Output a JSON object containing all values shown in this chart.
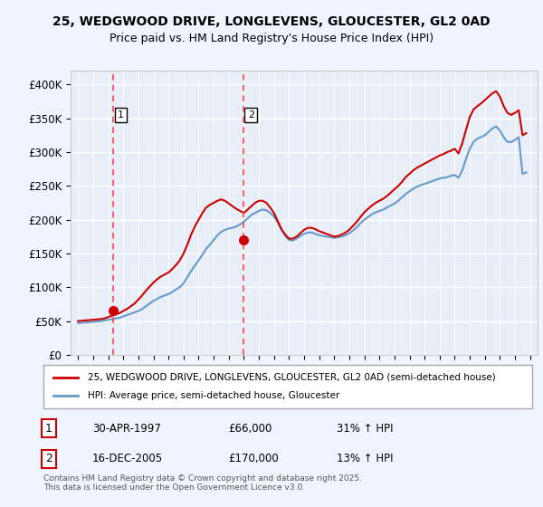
{
  "title_line1": "25, WEDGWOOD DRIVE, LONGLEVENS, GLOUCESTER, GL2 0AD",
  "title_line2": "Price paid vs. HM Land Registry's House Price Index (HPI)",
  "ylabel": "",
  "xlabel": "",
  "background_color": "#f0f4ff",
  "plot_bg_color": "#e8eef8",
  "grid_color": "#ffffff",
  "red_line_color": "#cc0000",
  "blue_line_color": "#6699cc",
  "dashed_line_color": "#ff4444",
  "ylim": [
    0,
    420000
  ],
  "yticks": [
    0,
    50000,
    100000,
    150000,
    200000,
    250000,
    300000,
    350000,
    400000
  ],
  "ytick_labels": [
    "£0",
    "£50K",
    "£100K",
    "£150K",
    "£200K",
    "£250K",
    "£300K",
    "£350K",
    "£400K"
  ],
  "sale1_date": 1997.33,
  "sale1_price": 66000,
  "sale1_label": "1",
  "sale2_date": 2005.96,
  "sale2_price": 170000,
  "sale2_label": "2",
  "legend_line1": "25, WEDGWOOD DRIVE, LONGLEVENS, GLOUCESTER, GL2 0AD (semi-detached house)",
  "legend_line2": "HPI: Average price, semi-detached house, Gloucester",
  "footnote": "Contains HM Land Registry data © Crown copyright and database right 2025.\nThis data is licensed under the Open Government Licence v3.0.",
  "table_rows": [
    {
      "num": "1",
      "date": "30-APR-1997",
      "price": "£66,000",
      "hpi": "31% ↑ HPI"
    },
    {
      "num": "2",
      "date": "16-DEC-2005",
      "price": "£170,000",
      "hpi": "13% ↑ HPI"
    }
  ],
  "hpi_data": {
    "years": [
      1995,
      1995.25,
      1995.5,
      1995.75,
      1996,
      1996.25,
      1996.5,
      1996.75,
      1997,
      1997.25,
      1997.5,
      1997.75,
      1998,
      1998.25,
      1998.5,
      1998.75,
      1999,
      1999.25,
      1999.5,
      1999.75,
      2000,
      2000.25,
      2000.5,
      2000.75,
      2001,
      2001.25,
      2001.5,
      2001.75,
      2002,
      2002.25,
      2002.5,
      2002.75,
      2003,
      2003.25,
      2003.5,
      2003.75,
      2004,
      2004.25,
      2004.5,
      2004.75,
      2005,
      2005.25,
      2005.5,
      2005.75,
      2006,
      2006.25,
      2006.5,
      2006.75,
      2007,
      2007.25,
      2007.5,
      2007.75,
      2008,
      2008.25,
      2008.5,
      2008.75,
      2009,
      2009.25,
      2009.5,
      2009.75,
      2010,
      2010.25,
      2010.5,
      2010.75,
      2011,
      2011.25,
      2011.5,
      2011.75,
      2012,
      2012.25,
      2012.5,
      2012.75,
      2013,
      2013.25,
      2013.5,
      2013.75,
      2014,
      2014.25,
      2014.5,
      2014.75,
      2015,
      2015.25,
      2015.5,
      2015.75,
      2016,
      2016.25,
      2016.5,
      2016.75,
      2017,
      2017.25,
      2017.5,
      2017.75,
      2018,
      2018.25,
      2018.5,
      2018.75,
      2019,
      2019.25,
      2019.5,
      2019.75,
      2020,
      2020.25,
      2020.5,
      2020.75,
      2021,
      2021.25,
      2021.5,
      2021.75,
      2022,
      2022.25,
      2022.5,
      2022.75,
      2023,
      2023.25,
      2023.5,
      2023.75,
      2024,
      2024.25,
      2024.5,
      2024.75
    ],
    "values": [
      47000,
      47500,
      48000,
      48500,
      49000,
      49500,
      50000,
      51000,
      52000,
      53000,
      54000,
      55000,
      57000,
      59000,
      61000,
      63000,
      65000,
      68000,
      72000,
      76000,
      80000,
      83000,
      86000,
      88000,
      90000,
      93000,
      97000,
      100000,
      106000,
      115000,
      124000,
      132000,
      140000,
      148000,
      157000,
      163000,
      170000,
      177000,
      182000,
      185000,
      187000,
      188000,
      190000,
      193000,
      197000,
      202000,
      207000,
      210000,
      213000,
      215000,
      214000,
      210000,
      205000,
      196000,
      185000,
      176000,
      170000,
      169000,
      172000,
      176000,
      179000,
      181000,
      181000,
      179000,
      177000,
      176000,
      175000,
      174000,
      173000,
      174000,
      175000,
      177000,
      180000,
      184000,
      189000,
      195000,
      200000,
      204000,
      208000,
      211000,
      213000,
      215000,
      218000,
      221000,
      224000,
      228000,
      233000,
      238000,
      242000,
      246000,
      249000,
      251000,
      253000,
      255000,
      257000,
      259000,
      261000,
      262000,
      263000,
      265000,
      266000,
      262000,
      273000,
      290000,
      305000,
      315000,
      320000,
      322000,
      325000,
      330000,
      335000,
      338000,
      332000,
      322000,
      315000,
      315000,
      318000,
      322000,
      268000,
      270000
    ]
  },
  "red_data": {
    "years": [
      1995,
      1995.25,
      1995.5,
      1995.75,
      1996,
      1996.25,
      1996.5,
      1996.75,
      1997,
      1997.25,
      1997.5,
      1997.75,
      1998,
      1998.25,
      1998.5,
      1998.75,
      1999,
      1999.25,
      1999.5,
      1999.75,
      2000,
      2000.25,
      2000.5,
      2000.75,
      2001,
      2001.25,
      2001.5,
      2001.75,
      2002,
      2002.25,
      2002.5,
      2002.75,
      2003,
      2003.25,
      2003.5,
      2003.75,
      2004,
      2004.25,
      2004.5,
      2004.75,
      2005,
      2005.25,
      2005.5,
      2005.75,
      2006,
      2006.25,
      2006.5,
      2006.75,
      2007,
      2007.25,
      2007.5,
      2007.75,
      2008,
      2008.25,
      2008.5,
      2008.75,
      2009,
      2009.25,
      2009.5,
      2009.75,
      2010,
      2010.25,
      2010.5,
      2010.75,
      2011,
      2011.25,
      2011.5,
      2011.75,
      2012,
      2012.25,
      2012.5,
      2012.75,
      2013,
      2013.25,
      2013.5,
      2013.75,
      2014,
      2014.25,
      2014.5,
      2014.75,
      2015,
      2015.25,
      2015.5,
      2015.75,
      2016,
      2016.25,
      2016.5,
      2016.75,
      2017,
      2017.25,
      2017.5,
      2017.75,
      2018,
      2018.25,
      2018.5,
      2018.75,
      2019,
      2019.25,
      2019.5,
      2019.75,
      2020,
      2020.25,
      2020.5,
      2020.75,
      2021,
      2021.25,
      2021.5,
      2021.75,
      2022,
      2022.25,
      2022.5,
      2022.75,
      2023,
      2023.25,
      2023.5,
      2023.75,
      2024,
      2024.25,
      2024.5,
      2024.75
    ],
    "values": [
      50000,
      50500,
      51000,
      51500,
      52000,
      52500,
      53000,
      54000,
      56000,
      58000,
      60000,
      62000,
      65000,
      68000,
      72000,
      76000,
      82000,
      88000,
      95000,
      101000,
      107000,
      112000,
      116000,
      119000,
      122000,
      127000,
      133000,
      140000,
      150000,
      163000,
      178000,
      190000,
      200000,
      210000,
      218000,
      222000,
      225000,
      228000,
      230000,
      228000,
      224000,
      220000,
      216000,
      213000,
      210000,
      215000,
      220000,
      225000,
      228000,
      228000,
      225000,
      218000,
      210000,
      198000,
      186000,
      178000,
      172000,
      172000,
      175000,
      180000,
      185000,
      188000,
      188000,
      186000,
      183000,
      181000,
      179000,
      177000,
      175000,
      176000,
      178000,
      181000,
      185000,
      191000,
      197000,
      204000,
      211000,
      216000,
      221000,
      225000,
      228000,
      231000,
      235000,
      240000,
      245000,
      250000,
      256000,
      263000,
      268000,
      273000,
      277000,
      280000,
      283000,
      286000,
      289000,
      292000,
      295000,
      297000,
      300000,
      302000,
      305000,
      298000,
      313000,
      333000,
      352000,
      363000,
      368000,
      372000,
      377000,
      382000,
      387000,
      390000,
      382000,
      368000,
      358000,
      355000,
      358000,
      362000,
      325000,
      328000
    ]
  }
}
